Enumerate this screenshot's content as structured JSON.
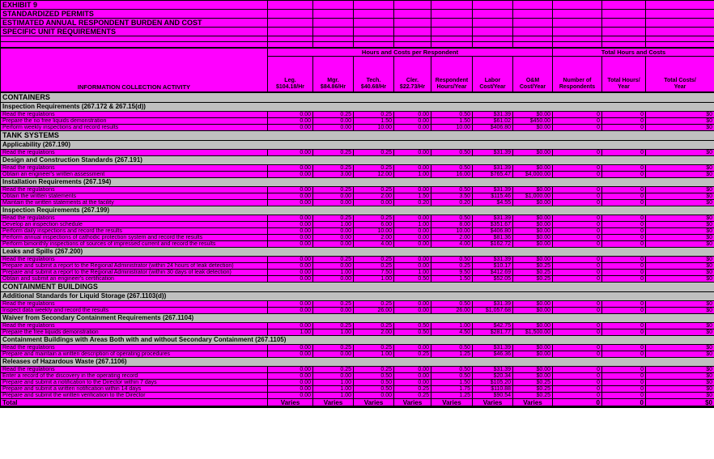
{
  "titles": [
    "EXHIBIT 9",
    "STANDARDIZED PERMITS",
    "ESTIMATED ANNUAL RESPONDENT BURDEN AND COST",
    "SPECIFIC UNIT REQUIREMENTS"
  ],
  "columns": {
    "activity": "INFORMATION COLLECTION ACTIVITY",
    "group_left": "Hours and Costs per Respondent",
    "group_right": "Total Hours and Costs",
    "headers": [
      {
        "l1": "Leg.",
        "l2": "$104.18/Hr"
      },
      {
        "l1": "Mgr.",
        "l2": "$84.86/Hr"
      },
      {
        "l1": "Tech.",
        "l2": "$40.68/Hr"
      },
      {
        "l1": "Cler.",
        "l2": "$22.73/Hr"
      },
      {
        "l1": "Respondent",
        "l2": "Hours/Year"
      },
      {
        "l1": "Labor",
        "l2": "Cost/Year"
      },
      {
        "l1": "O&M",
        "l2": "Cost/Year"
      },
      {
        "l1": "Number of",
        "l2": "Respondents"
      },
      {
        "l1": "Total Hours/",
        "l2": "Year"
      },
      {
        "l1": "Total Costs/",
        "l2": "Year"
      }
    ]
  },
  "colors": {
    "cell_bg": "#FF00FF",
    "section_bg": "#C0C0C0",
    "grid": "#000000"
  },
  "table": {
    "rows": [
      {
        "type": "section",
        "label": "CONTAINERS"
      },
      {
        "type": "subsection",
        "label": "Inspection Requirements (267.172 & 267.15(d))"
      },
      {
        "type": "data",
        "label": "Read the regulations",
        "values": [
          "0.00",
          "0.25",
          "0.25",
          "0.00",
          "0.50",
          "$31.39",
          "$0.00",
          "0",
          "0",
          "$0"
        ]
      },
      {
        "type": "data",
        "label": "Prepare the no free liquids demonstration",
        "values": [
          "0.00",
          "0.00",
          "1.50",
          "0.00",
          "1.50",
          "$61.02",
          "$450.00",
          "0",
          "0",
          "$0"
        ]
      },
      {
        "type": "data",
        "label": "Perform weekly inspections and record results",
        "values": [
          "0.00",
          "0.00",
          "10.00",
          "0.00",
          "10.00",
          "$406.80",
          "$0.00",
          "0",
          "0",
          "$0"
        ]
      },
      {
        "type": "section",
        "label": "TANK SYSTEMS"
      },
      {
        "type": "subsection",
        "label": "Applicability (267.190)"
      },
      {
        "type": "data",
        "label": "Read the regulations",
        "values": [
          "0.00",
          "0.25",
          "0.25",
          "0.00",
          "0.50",
          "$31.39",
          "$0.00",
          "0",
          "0",
          "$0"
        ]
      },
      {
        "type": "subsection",
        "label": "Design and Construction Standards (267.191)"
      },
      {
        "type": "data",
        "label": "Read the regulations",
        "values": [
          "0.00",
          "0.25",
          "0.25",
          "0.00",
          "0.50",
          "$31.39",
          "$0.00",
          "0",
          "0",
          "$0"
        ]
      },
      {
        "type": "data",
        "label": "Obtain an engineer's written assessment",
        "values": [
          "0.00",
          "3.00",
          "12.00",
          "1.00",
          "16.00",
          "$765.47",
          "$4,000.00",
          "0",
          "0",
          "$0"
        ]
      },
      {
        "type": "subsection",
        "label": "Installation Requirements (267.194)"
      },
      {
        "type": "data",
        "label": "Read the regulations",
        "values": [
          "0.00",
          "0.25",
          "0.25",
          "0.00",
          "0.50",
          "$31.39",
          "$0.00",
          "0",
          "0",
          "$0"
        ]
      },
      {
        "type": "data",
        "label": "Obtain the written statements",
        "values": [
          "0.00",
          "0.00",
          "2.00",
          "1.50",
          "3.50",
          "$115.46",
          "$1,000.00",
          "0",
          "0",
          "$0"
        ]
      },
      {
        "type": "data",
        "label": "Maintain the written statements at the facility",
        "values": [
          "0.00",
          "0.00",
          "0.00",
          "0.20",
          "0.20",
          "$4.55",
          "$0.00",
          "0",
          "0",
          "$0"
        ]
      },
      {
        "type": "subsection",
        "label": "Inspection Requirements (267.199)"
      },
      {
        "type": "data",
        "label": "Read the regulations",
        "values": [
          "0.00",
          "0.25",
          "0.25",
          "0.00",
          "0.50",
          "$31.39",
          "$0.00",
          "0",
          "0",
          "$0"
        ]
      },
      {
        "type": "data",
        "label": "Develop an inspection schedule",
        "values": [
          "0.00",
          "1.00",
          "6.00",
          "1.00",
          "8.00",
          "$351.67",
          "$0.00",
          "0",
          "0",
          "$0"
        ]
      },
      {
        "type": "data",
        "label": "Perform daily inspections and record the results",
        "values": [
          "0.00",
          "0.00",
          "10.00",
          "0.00",
          "10.00",
          "$406.80",
          "$0.00",
          "0",
          "0",
          "$0"
        ]
      },
      {
        "type": "data",
        "label": "Perform annual inspections of cathodic protection system and record the results",
        "values": [
          "0.00",
          "0.00",
          "2.00",
          "0.00",
          "2.00",
          "$81.36",
          "$0.00",
          "0",
          "0",
          "$0"
        ]
      },
      {
        "type": "data",
        "label": "Perform bimonthly inspections of sources of impressed current and record the results",
        "values": [
          "0.00",
          "0.00",
          "4.00",
          "0.00",
          "4.00",
          "$162.72",
          "$0.00",
          "0",
          "0",
          "$0"
        ]
      },
      {
        "type": "subsection",
        "label": "Leaks and Spills (267.200)"
      },
      {
        "type": "data",
        "label": "Read the regulations",
        "values": [
          "0.00",
          "0.25",
          "0.25",
          "0.00",
          "0.50",
          "$31.39",
          "$0.00",
          "0",
          "0",
          "$0"
        ]
      },
      {
        "type": "data",
        "label": "Prepare and submit a report to the Regional Administrator (within 24 hours of leak detection)",
        "values": [
          "0.00",
          "0.00",
          "0.25",
          "0.00",
          "0.25",
          "$10.17",
          "$0.25",
          "0",
          "0",
          "$0"
        ]
      },
      {
        "type": "data",
        "label": "Prepare and submit a report to the Regional Administrator (within 30 days of leak detection)",
        "values": [
          "0.00",
          "1.00",
          "7.50",
          "1.00",
          "9.50",
          "$412.69",
          "$0.25",
          "0",
          "0",
          "$0"
        ]
      },
      {
        "type": "data",
        "label": "Obtain and submit an engineer's certification",
        "values": [
          "0.00",
          "0.00",
          "1.00",
          "0.50",
          "1.50",
          "$52.05",
          "$0.25",
          "0",
          "0",
          "$0"
        ]
      },
      {
        "type": "section",
        "label": "CONTAINMENT BUILDINGS"
      },
      {
        "type": "subsection",
        "label": "Additional Standards for Liquid Storage (267.1103(d))"
      },
      {
        "type": "data",
        "label": "Read the regulations",
        "values": [
          "0.00",
          "0.25",
          "0.25",
          "0.00",
          "0.50",
          "$31.39",
          "$0.00",
          "0",
          "0",
          "$0"
        ]
      },
      {
        "type": "data",
        "label": "Inspect data weekly and record the results",
        "values": [
          "0.00",
          "0.00",
          "26.00",
          "0.00",
          "26.00",
          "$1,057.68",
          "$0.00",
          "0",
          "0",
          "$0"
        ]
      },
      {
        "type": "subsection",
        "label": "Waiver from Secondary Containment Requirements (267.1104)"
      },
      {
        "type": "data",
        "label": "Read the regulations",
        "values": [
          "0.00",
          "0.25",
          "0.25",
          "0.50",
          "1.00",
          "$42.75",
          "$0.00",
          "0",
          "0",
          "$0"
        ]
      },
      {
        "type": "data",
        "label": "Prepare the free liquids demonstration",
        "values": [
          "1.00",
          "1.00",
          "2.00",
          "0.50",
          "4.50",
          "$281.77",
          "$1,500.00",
          "0",
          "0",
          "$0"
        ]
      },
      {
        "type": "subsection",
        "label": "Containment Buildings with Areas Both with and without Secondary Containment (267.1105)"
      },
      {
        "type": "data",
        "label": "Read the regulations",
        "values": [
          "0.00",
          "0.25",
          "0.25",
          "0.00",
          "0.50",
          "$31.39",
          "$0.00",
          "0",
          "0",
          "$0"
        ]
      },
      {
        "type": "data",
        "label": "Prepare and maintain a written description of operating procedures",
        "values": [
          "0.00",
          "0.00",
          "1.00",
          "0.25",
          "1.25",
          "$46.36",
          "$0.00",
          "0",
          "0",
          "$0"
        ]
      },
      {
        "type": "subsection",
        "label": "Releases of Hazardous Waste (267.1106)"
      },
      {
        "type": "data",
        "label": "Read the regulations",
        "values": [
          "0.00",
          "0.25",
          "0.25",
          "0.00",
          "0.50",
          "$31.39",
          "$0.00",
          "0",
          "0",
          "$0"
        ]
      },
      {
        "type": "data",
        "label": "Enter a record of the discovery in the operating record",
        "values": [
          "0.00",
          "0.00",
          "0.50",
          "0.00",
          "0.50",
          "$20.34",
          "$0.00",
          "0",
          "0",
          "$0"
        ]
      },
      {
        "type": "data",
        "label": "Prepare and submit a notification to the Director within 7 days",
        "values": [
          "0.00",
          "1.00",
          "0.50",
          "0.00",
          "1.50",
          "$105.20",
          "$0.25",
          "0",
          "0",
          "$0"
        ]
      },
      {
        "type": "data",
        "label": "Prepare and submit a written notification within 14 days",
        "values": [
          "0.00",
          "1.00",
          "0.50",
          "0.25",
          "1.75",
          "$110.88",
          "$0.25",
          "0",
          "0",
          "$0"
        ]
      },
      {
        "type": "data",
        "label": "Prepare and submit the written verification to the Director",
        "values": [
          "0.00",
          "1.00",
          "0.00",
          "0.25",
          "1.25",
          "$90.54",
          "$0.25",
          "0",
          "0",
          "$0"
        ]
      },
      {
        "type": "total",
        "label": "Total",
        "values": [
          "Varies",
          "Varies",
          "Varies",
          "Varies",
          "Varies",
          "Varies",
          "Varies",
          "0",
          "0",
          "$0"
        ]
      }
    ]
  }
}
